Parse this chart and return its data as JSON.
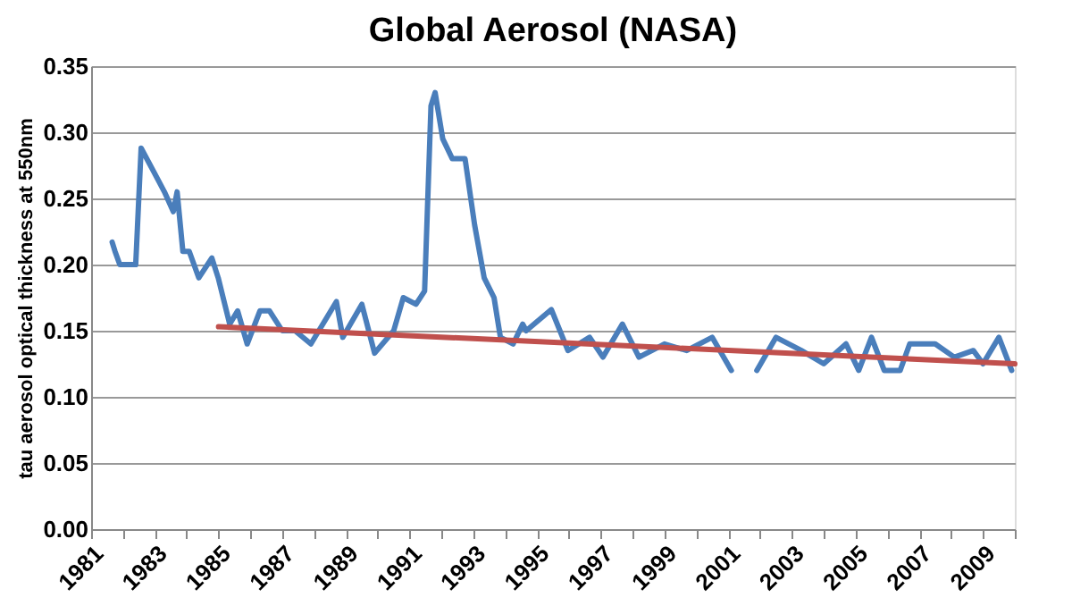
{
  "chart_data": {
    "type": "line",
    "title": "Global Aerosol  (NASA)",
    "ylabel": "tau  aerosol optical thickness at 550nm",
    "xlim": [
      1981,
      2010
    ],
    "xticks": [
      1981,
      {
        "value": 1982,
        "label": null
      },
      1983,
      {
        "value": 1984,
        "label": null
      },
      1985,
      {
        "value": 1986,
        "label": null
      },
      1987,
      {
        "value": 1988,
        "label": null
      },
      1989,
      {
        "value": 1990,
        "label": null
      },
      1991,
      {
        "value": 1992,
        "label": null
      },
      1993,
      {
        "value": 1994,
        "label": null
      },
      1995,
      {
        "value": 1996,
        "label": null
      },
      1997,
      {
        "value": 1998,
        "label": null
      },
      1999,
      {
        "value": 2000,
        "label": null
      },
      2001,
      {
        "value": 2002,
        "label": null
      },
      2003,
      {
        "value": 2004,
        "label": null
      },
      2005,
      {
        "value": 2006,
        "label": null
      },
      2007,
      {
        "value": 2008,
        "label": null
      },
      2009,
      {
        "value": 2010,
        "label": null
      }
    ],
    "ylim": [
      0,
      0.35
    ],
    "yticks": [
      {
        "value": 0,
        "label": "0.00"
      },
      {
        "value": 0.05,
        "label": "0.05"
      },
      {
        "value": 0.1,
        "label": "0.10"
      },
      {
        "value": 0.15,
        "label": "0.15"
      },
      {
        "value": 0.2,
        "label": "0.20"
      },
      {
        "value": 0.25,
        "label": "0.25"
      },
      {
        "value": 0.3,
        "label": "0.30"
      },
      {
        "value": 0.35,
        "label": "0.35"
      }
    ],
    "grid": "y",
    "marker": "none",
    "line_style": "solid",
    "series": [
      {
        "color": "#4a7ebb",
        "x": [
          1981.66,
          1981.75,
          1981.9,
          1982.0,
          1982.4,
          1982.57,
          1982.97,
          1983.3,
          1983.58,
          1983.7,
          1983.88,
          1984.08,
          1984.38,
          1984.79,
          1984.99,
          1985.35,
          1985.6,
          1985.9,
          1986.3,
          1986.6,
          1987.0,
          1987.4,
          1987.9,
          1988.4,
          1988.7,
          1988.9,
          1989.5,
          1989.9,
          1990.5,
          1990.8,
          1991.2,
          1991.47,
          1991.67,
          1991.8,
          1992.04,
          1992.34,
          1992.74,
          1993.04,
          1993.34,
          1993.65,
          1993.85,
          1994.25,
          1994.55,
          1994.66,
          1995.45,
          1995.97,
          1996.65,
          1997.07,
          1997.68,
          1998.2,
          1999.0,
          1999.7,
          2000.5,
          2001.1,
          2001.3,
          2001.9,
          2002.5,
          2003.3,
          2004.0,
          2004.7,
          2005.1,
          2005.5,
          2005.9,
          2006.4,
          2006.7,
          2007.5,
          2008.1,
          2008.7,
          2009.0,
          2009.5,
          2009.9
        ],
        "values": [
          0.217,
          0.21,
          0.2,
          0.2,
          0.2,
          0.288,
          0.27,
          0.255,
          0.24,
          0.255,
          0.21,
          0.21,
          0.19,
          0.205,
          0.19,
          0.155,
          0.165,
          0.14,
          0.165,
          0.165,
          0.15,
          0.15,
          0.14,
          0.16,
          0.172,
          0.145,
          0.17,
          0.133,
          0.15,
          0.175,
          0.17,
          0.18,
          0.32,
          0.33,
          0.295,
          0.28,
          0.28,
          0.23,
          0.19,
          0.175,
          0.145,
          0.14,
          0.155,
          0.15,
          0.166,
          0.135,
          0.145,
          0.13,
          0.155,
          0.13,
          0.14,
          0.135,
          0.145,
          0.12,
          null,
          0.12,
          0.145,
          0.135,
          0.125,
          0.14,
          0.12,
          0.145,
          0.12,
          0.12,
          0.14,
          0.14,
          0.13,
          0.135,
          0.125,
          0.145,
          0.12
        ]
      },
      {
        "color": "#c0504d",
        "x": [
          1985.0,
          2010.0
        ],
        "values": [
          0.153,
          0.125
        ]
      }
    ]
  }
}
